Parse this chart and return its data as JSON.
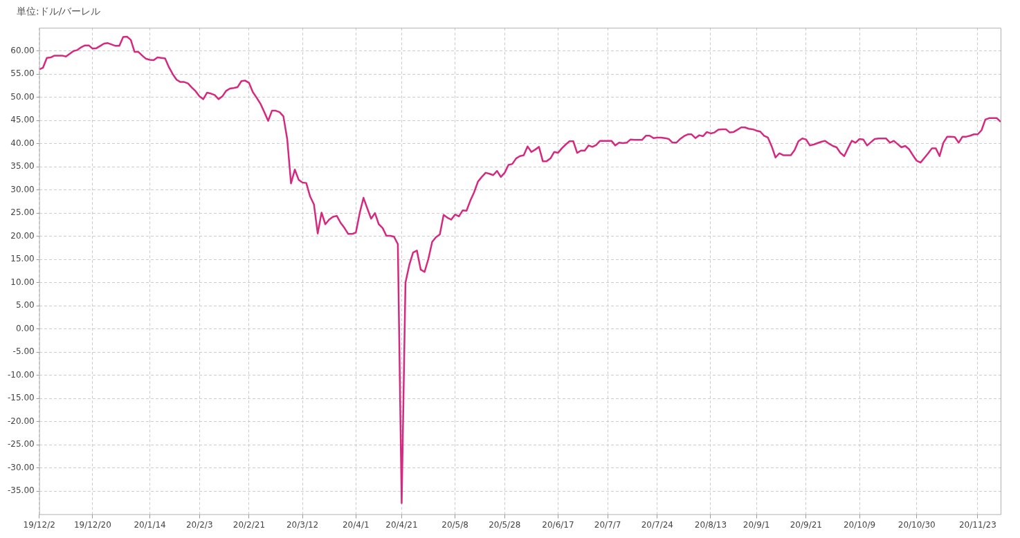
{
  "chart_data": {
    "type": "line",
    "ylabel": "単位:ドル/バーレル",
    "categories": [
      "19/12/2",
      null,
      null,
      null,
      null,
      null,
      null,
      null,
      null,
      null,
      null,
      null,
      null,
      null,
      "19/12/20",
      null,
      null,
      null,
      null,
      null,
      null,
      null,
      null,
      null,
      null,
      null,
      null,
      null,
      null,
      "20/1/14",
      null,
      null,
      null,
      null,
      null,
      null,
      null,
      null,
      null,
      null,
      null,
      null,
      "20/2/3",
      null,
      null,
      null,
      null,
      null,
      null,
      null,
      null,
      null,
      null,
      null,
      null,
      "20/2/21",
      null,
      null,
      null,
      null,
      null,
      null,
      null,
      null,
      null,
      null,
      null,
      null,
      null,
      "20/3/12",
      null,
      null,
      null,
      null,
      null,
      null,
      null,
      null,
      null,
      null,
      null,
      null,
      null,
      "20/4/1",
      null,
      null,
      null,
      null,
      null,
      null,
      null,
      null,
      null,
      null,
      null,
      "20/4/21",
      null,
      null,
      null,
      null,
      null,
      null,
      null,
      null,
      null,
      null,
      null,
      null,
      null,
      "20/5/8",
      null,
      null,
      null,
      null,
      null,
      null,
      null,
      null,
      null,
      null,
      null,
      null,
      "20/5/28",
      null,
      null,
      null,
      null,
      null,
      null,
      null,
      null,
      null,
      null,
      null,
      null,
      null,
      "20/6/17",
      null,
      null,
      null,
      null,
      null,
      null,
      null,
      null,
      null,
      null,
      null,
      null,
      "20/7/7",
      null,
      null,
      null,
      null,
      null,
      null,
      null,
      null,
      null,
      null,
      null,
      null,
      "20/7/24",
      null,
      null,
      null,
      null,
      null,
      null,
      null,
      null,
      null,
      null,
      null,
      null,
      null,
      "20/8/13",
      null,
      null,
      null,
      null,
      null,
      null,
      null,
      null,
      null,
      null,
      null,
      "20/9/1",
      null,
      null,
      null,
      null,
      null,
      null,
      null,
      null,
      null,
      null,
      null,
      null,
      "20/9/21",
      null,
      null,
      null,
      null,
      null,
      null,
      null,
      null,
      null,
      null,
      null,
      null,
      null,
      "20/10/9",
      null,
      null,
      null,
      null,
      null,
      null,
      null,
      null,
      null,
      null,
      null,
      null,
      null,
      null,
      "20/10/30",
      null,
      null,
      null,
      null,
      null,
      null,
      null,
      null,
      null,
      null,
      null,
      null,
      null,
      null,
      null,
      "20/11/23",
      null,
      null,
      null,
      null,
      null,
      null
    ],
    "series": [
      {
        "color": "#d6287f",
        "values": [
          56.0,
          56.4,
          58.5,
          58.6,
          59.0,
          59.0,
          59.0,
          58.8,
          59.4,
          60.0,
          60.2,
          60.8,
          61.2,
          61.2,
          60.5,
          60.6,
          61.1,
          61.6,
          61.7,
          61.4,
          61.1,
          61.1,
          63.0,
          63.1,
          62.4,
          59.8,
          59.8,
          59.0,
          58.3,
          58.1,
          58.0,
          58.6,
          58.5,
          58.4,
          56.5,
          55.0,
          53.8,
          53.3,
          53.3,
          53.0,
          52.1,
          51.3,
          50.2,
          49.6,
          51.0,
          50.8,
          50.5,
          49.6,
          50.2,
          51.4,
          51.9,
          52.0,
          52.2,
          53.5,
          53.6,
          53.1,
          51.1,
          49.9,
          48.6,
          46.8,
          44.9,
          47.1,
          47.1,
          46.8,
          45.9,
          41.0,
          31.4,
          34.4,
          32.2,
          31.6,
          31.5,
          28.6,
          26.9,
          20.6,
          25.1,
          22.6,
          23.6,
          24.2,
          24.4,
          22.9,
          21.8,
          20.5,
          20.5,
          20.8,
          25.0,
          28.3,
          26.0,
          23.8,
          25.0,
          22.6,
          21.8,
          20.1,
          20.1,
          19.9,
          18.3,
          -37.6,
          10.0,
          13.8,
          16.5,
          16.9,
          12.8,
          12.3,
          15.1,
          18.8,
          19.8,
          20.4,
          24.6,
          24.0,
          23.6,
          24.7,
          24.3,
          25.6,
          25.5,
          27.7,
          29.5,
          31.8,
          32.8,
          33.7,
          33.5,
          33.2,
          34.1,
          32.8,
          33.7,
          35.4,
          35.6,
          36.8,
          37.3,
          37.5,
          39.4,
          38.2,
          38.7,
          39.3,
          36.2,
          36.2,
          36.8,
          38.2,
          38.0,
          39.0,
          39.8,
          40.5,
          40.5,
          38.0,
          38.5,
          38.5,
          39.6,
          39.3,
          39.7,
          40.6,
          40.6,
          40.6,
          40.6,
          39.6,
          40.2,
          40.1,
          40.2,
          40.9,
          40.8,
          40.8,
          40.8,
          41.7,
          41.7,
          41.2,
          41.3,
          41.3,
          41.2,
          41.0,
          40.2,
          40.2,
          41.0,
          41.6,
          42.0,
          42.0,
          41.2,
          41.8,
          41.6,
          42.5,
          42.2,
          42.4,
          43.0,
          43.1,
          43.1,
          42.4,
          42.5,
          43.0,
          43.5,
          43.5,
          43.2,
          43.1,
          42.8,
          42.6,
          41.7,
          41.3,
          39.4,
          37.0,
          37.9,
          37.5,
          37.5,
          37.5,
          38.6,
          40.5,
          41.1,
          40.9,
          39.6,
          39.8,
          40.1,
          40.4,
          40.6,
          40.0,
          39.5,
          39.2,
          38.0,
          37.3,
          39.0,
          40.6,
          40.2,
          41.0,
          40.9,
          39.6,
          40.3,
          41.0,
          41.1,
          41.1,
          41.1,
          40.2,
          40.6,
          39.9,
          39.2,
          39.5,
          38.8,
          37.5,
          36.3,
          35.9,
          36.9,
          37.9,
          39.0,
          39.0,
          37.3,
          40.2,
          41.5,
          41.5,
          41.4,
          40.2,
          41.5,
          41.5,
          41.7,
          42.0,
          42.0,
          42.9,
          45.2,
          45.5,
          45.5,
          45.5,
          44.7
        ]
      }
    ],
    "ylim": [
      -40,
      65
    ],
    "yticks": [
      {
        "value": -35,
        "label": "-35.00"
      },
      {
        "value": -30,
        "label": "-30.00"
      },
      {
        "value": -25,
        "label": "-25.00"
      },
      {
        "value": -20,
        "label": "-20.00"
      },
      {
        "value": -15,
        "label": "-15.00"
      },
      {
        "value": -10,
        "label": "-10.00"
      },
      {
        "value": -5,
        "label": "-5.00"
      },
      {
        "value": 0,
        "label": "0.00"
      },
      {
        "value": 5,
        "label": "5.00"
      },
      {
        "value": 10,
        "label": "10.00"
      },
      {
        "value": 15,
        "label": "15.00"
      },
      {
        "value": 20,
        "label": "20.00"
      },
      {
        "value": 25,
        "label": "25.00"
      },
      {
        "value": 30,
        "label": "30.00"
      },
      {
        "value": 35,
        "label": "35.00"
      },
      {
        "value": 40,
        "label": "40.00"
      },
      {
        "value": 45,
        "label": "45.00"
      },
      {
        "value": 50,
        "label": "50.00"
      },
      {
        "value": 55,
        "label": "55.00"
      },
      {
        "value": 60,
        "label": "60.00"
      }
    ],
    "grid": true,
    "legend": false,
    "marker": "none",
    "line_style": "solid"
  }
}
